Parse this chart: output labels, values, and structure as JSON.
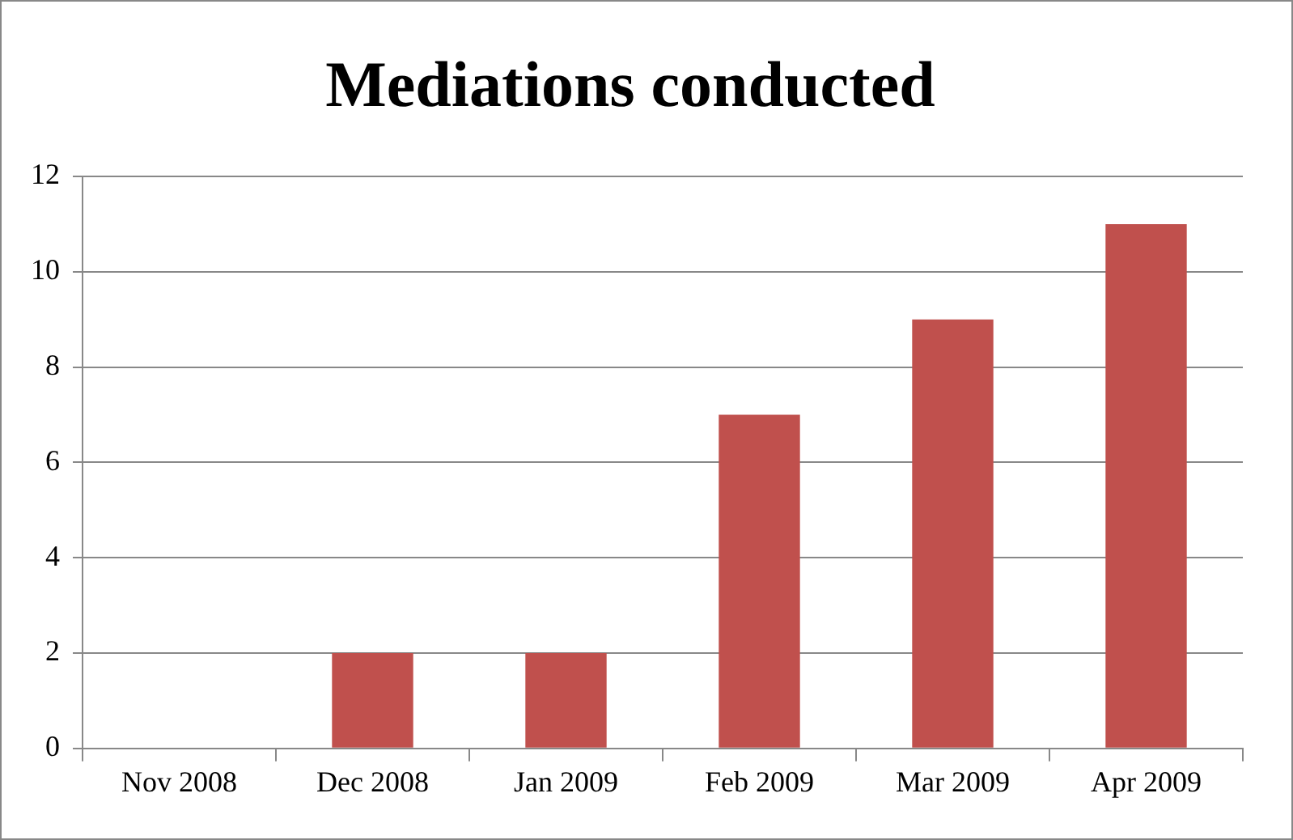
{
  "chart_data": {
    "type": "bar",
    "title": "Mediations conducted",
    "categories": [
      "Nov 2008",
      "Dec 2008",
      "Jan 2009",
      "Feb 2009",
      "Mar 2009",
      "Apr 2009"
    ],
    "values": [
      0,
      2,
      2,
      7,
      9,
      11
    ],
    "color": "#c0504d",
    "ylim": [
      0,
      12
    ],
    "yticks": [
      0,
      2,
      4,
      6,
      8,
      10,
      12
    ],
    "grid": "y",
    "legend": false
  }
}
